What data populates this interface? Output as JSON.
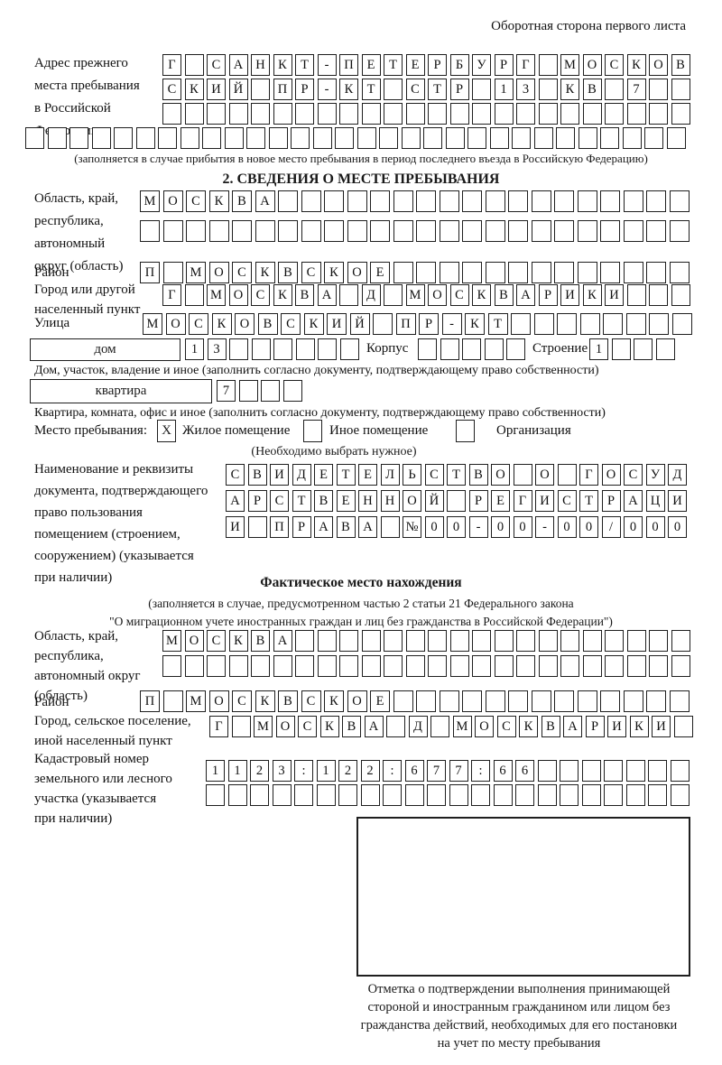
{
  "page_note": "Оборотная сторона первого листа",
  "prev_address": {
    "label_lines": [
      "Адрес прежнего",
      "места пребывания",
      "в Российской",
      "Федерации"
    ],
    "row1": {
      "text": "Г САНКТ-ПЕТЕРБУРГ МОСКОВ",
      "count": 24
    },
    "row2": {
      "text": "СКИЙ ПР-КТ СТР 13 КВ 7",
      "count": 24
    },
    "row3": {
      "text": "",
      "count": 24
    },
    "row4": {
      "text": "",
      "count": 30
    },
    "note": "(заполняется в случае прибытия в новое место пребывания в период последнего въезда в Российскую Федерацию)"
  },
  "section2": {
    "title": "2. СВЕДЕНИЯ О МЕСТЕ ПРЕБЫВАНИЯ",
    "region": {
      "label_lines": [
        "Область, край,",
        "республика,",
        "автономный",
        "округ (область)"
      ],
      "row1": {
        "text": "МОСКВА",
        "count": 24
      },
      "row2": {
        "text": "",
        "count": 24
      }
    },
    "district": {
      "label": "Район",
      "row": {
        "text": "П МОСКВСКОЕ",
        "count": 24
      }
    },
    "city": {
      "label_lines": [
        "Город или другой",
        "населенный пункт"
      ],
      "row": {
        "text": "Г МОСКВА Д МОСКВАРИКИ",
        "count": 24
      }
    },
    "street": {
      "label": "Улица",
      "row": {
        "text": "МОСКОВСКИЙ ПР-КТ",
        "count": 24
      }
    },
    "house": {
      "box_label": "дом",
      "cells": {
        "text": "13",
        "count": 8
      },
      "korpus_label": "Корпус",
      "korpus_cells": {
        "text": "",
        "count": 5
      },
      "stroenie_label": "Строение",
      "stroenie_cells": {
        "text": "1",
        "count": 4
      },
      "note": "Дом, участок, владение и иное (заполнить согласно документу, подтверждающему право собственности)"
    },
    "apartment": {
      "box_label": "квартира",
      "cells": {
        "text": "7",
        "count": 4
      },
      "note": "Квартира, комната, офис и иное (заполнить согласно документу, подтверждающему право собственности)"
    },
    "stay_type": {
      "label": "Место пребывания:",
      "options": [
        {
          "label": "Жилое помещение",
          "checked": "X"
        },
        {
          "label": "Иное помещение",
          "checked": ""
        },
        {
          "label": "Организация",
          "checked": ""
        }
      ],
      "note": "(Необходимо выбрать нужное)"
    },
    "document": {
      "label_lines": [
        "Наименование и реквизиты",
        "документа, подтверждающего",
        "право пользования",
        "помещением (строением,",
        "сооружением) (указывается",
        "при наличии)"
      ],
      "row1": {
        "text": "СВИДЕТЕЛЬСТВО О ГОСУД",
        "count": 21
      },
      "row2": {
        "text": "АРСТВЕННОЙ РЕГИСТРАЦИ",
        "count": 21
      },
      "row3": {
        "text": "И ПРАВА №00-00-00/000",
        "count": 21
      }
    }
  },
  "actual_location": {
    "title": "Фактическое место нахождения",
    "note_lines": [
      "(заполняется в случае, предусмотренном частью 2 статьи 21 Федерального закона",
      "\"О миграционном учете иностранных граждан и лиц без гражданства в Российской Федерации\")"
    ],
    "region": {
      "label_lines": [
        "Область, край,",
        "республика,",
        "автономный округ",
        "(область)"
      ],
      "row1": {
        "text": "МОСКВА",
        "count": 24
      },
      "row2": {
        "text": "",
        "count": 24
      }
    },
    "district": {
      "label": "Район",
      "row": {
        "text": "П МОСКВСКОЕ",
        "count": 24
      }
    },
    "city": {
      "label_lines": [
        "Город, сельское поселение,",
        "иной населенный пункт"
      ],
      "row": {
        "text": "Г МОСКВА Д МОСКВАРИКИ",
        "count": 22
      }
    },
    "cadastral": {
      "label_lines": [
        "Кадастровый номер",
        "земельного или лесного",
        "участка (указывается",
        "при наличии)"
      ],
      "row1": {
        "text": "1123:122:677:66",
        "count": 22
      },
      "row2": {
        "text": "",
        "count": 22
      }
    },
    "stamp_caption_lines": [
      "Отметка о подтверждении выполнения принимающей",
      "стороной и иностранным гражданином или лицом без",
      "гражданства действий, необходимых для его постановки",
      "на учет по месту пребывания"
    ]
  }
}
